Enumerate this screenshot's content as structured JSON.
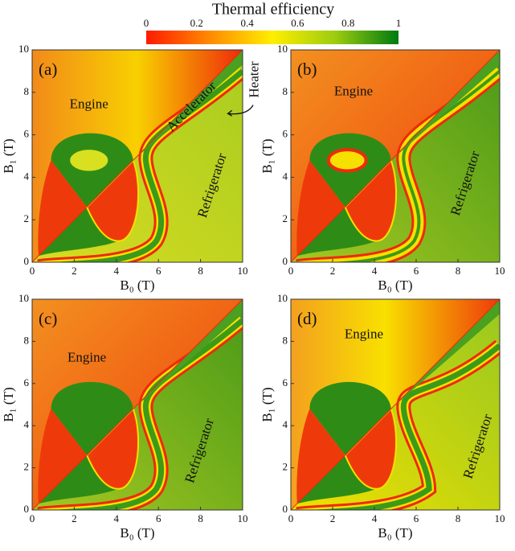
{
  "colorbar": {
    "title": "Thermal efficiency",
    "lim": [
      0,
      1
    ],
    "ticks": [
      0,
      0.2,
      0.4,
      0.6,
      0.8,
      1
    ]
  },
  "chart_data": [
    {
      "type": "heatmap",
      "panel_label": "(a)",
      "x_label": "B₀ (T)",
      "y_label": "B₁ (T)",
      "xlim": [
        0,
        10
      ],
      "ylim": [
        0,
        10
      ],
      "xticks": [
        0,
        2,
        4,
        6,
        8,
        10
      ],
      "yticks": [
        0,
        2,
        4,
        6,
        8,
        10
      ],
      "annotations": [
        "Engine",
        "Accelerator",
        "Refrigerator",
        "Heater"
      ]
    },
    {
      "type": "heatmap",
      "panel_label": "(b)",
      "x_label": "B₀ (T)",
      "y_label": "B₁ (T)",
      "xlim": [
        0,
        10
      ],
      "ylim": [
        0,
        10
      ],
      "xticks": [
        0,
        2,
        4,
        6,
        8,
        10
      ],
      "yticks": [
        0,
        2,
        4,
        6,
        8,
        10
      ],
      "annotations": [
        "Engine",
        "Refrigerator"
      ]
    },
    {
      "type": "heatmap",
      "panel_label": "(c)",
      "x_label": "B₀ (T)",
      "y_label": "B₁ (T)",
      "xlim": [
        0,
        10
      ],
      "ylim": [
        0,
        10
      ],
      "xticks": [
        0,
        2,
        4,
        6,
        8,
        10
      ],
      "yticks": [
        0,
        2,
        4,
        6,
        8,
        10
      ],
      "annotations": [
        "Engine",
        "Refrigerator"
      ]
    },
    {
      "type": "heatmap",
      "panel_label": "(d)",
      "x_label": "B₀ (T)",
      "y_label": "B₁ (T)",
      "xlim": [
        0,
        10
      ],
      "ylim": [
        0,
        10
      ],
      "xticks": [
        0,
        2,
        4,
        6,
        8,
        10
      ],
      "yticks": [
        0,
        2,
        4,
        6,
        8,
        10
      ],
      "annotations": [
        "Engine",
        "Refrigerator"
      ]
    }
  ]
}
